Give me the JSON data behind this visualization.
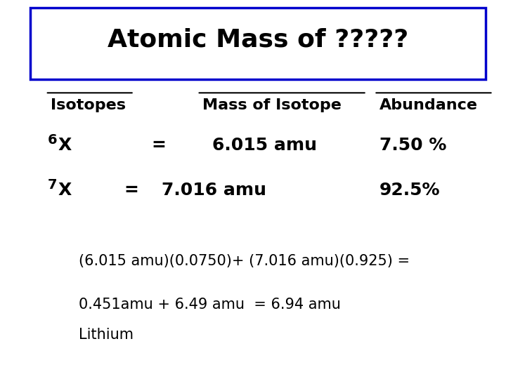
{
  "title": "Atomic Mass of ?????",
  "title_box_color": "#0000CC",
  "bg_color": "#FFFFFF",
  "header_isotopes": "Isotopes",
  "header_mass": "Mass of Isotope",
  "header_abundance": "Abundance",
  "row1_isotope_super": "6",
  "row1_isotope_base": "X",
  "row1_eq": "=",
  "row1_mass": "6.015 amu",
  "row1_abundance": "7.50 %",
  "row2_isotope_super": "7",
  "row2_isotope_base": "X",
  "row2_eq": "=",
  "row2_mass": "7.016 amu",
  "row2_abundance": "92.5%",
  "calc_line1": "(6.015 amu)(0.0750)+ (7.016 amu)(0.925) =",
  "calc_line2": "0.451amu + 6.49 amu  = 6.94 amu",
  "calc_line3": "Lithium",
  "font_color": "#000000",
  "font_family": "DejaVu Sans",
  "title_fontsize": 26,
  "header_fontsize": 16,
  "body_fontsize": 18,
  "calc_fontsize": 15
}
